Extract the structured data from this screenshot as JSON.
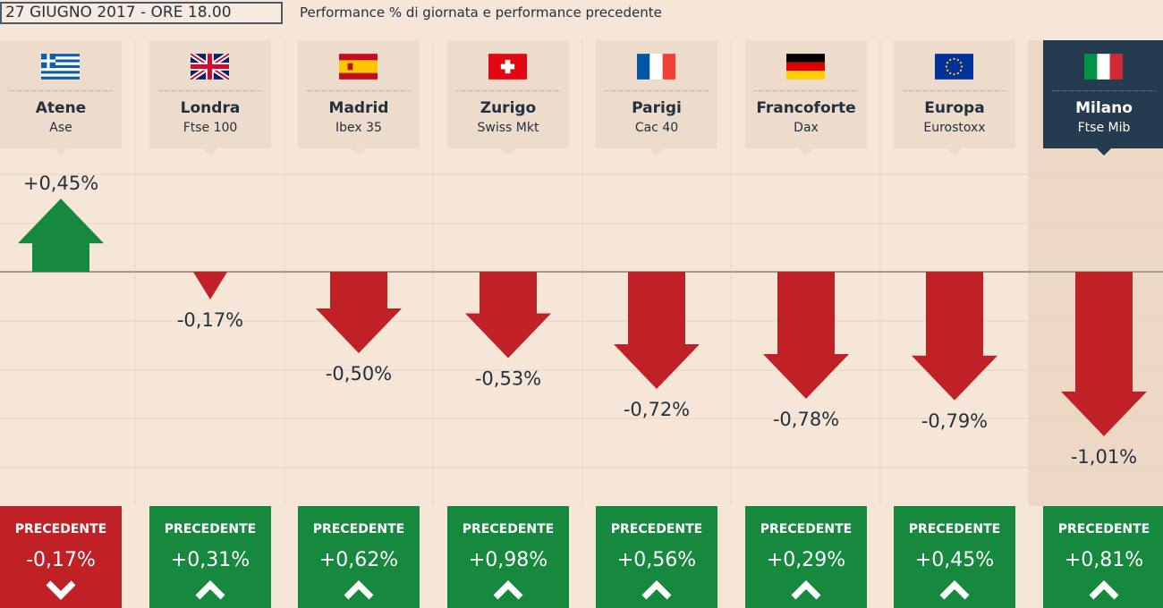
{
  "header": {
    "date": "27 GIUGNO 2017 - ORE 18.00",
    "subtitle": "Performance % di giornata e performance precedente"
  },
  "chart_data": {
    "type": "bar",
    "title": "Performance % di giornata e performance precedente",
    "categories": [
      "Atene",
      "Londra",
      "Madrid",
      "Zurigo",
      "Parigi",
      "Francoforte",
      "Europa",
      "Milano"
    ],
    "series": [
      {
        "values": [
          0.45,
          -0.17,
          -0.5,
          -0.53,
          -0.72,
          -0.78,
          -0.79,
          -1.01
        ]
      }
    ],
    "ylim": [
      -1.1,
      0.45
    ],
    "grid": true
  },
  "markets": [
    {
      "city": "Atene",
      "index": "Ase",
      "flag": "greece-flag",
      "value": 0.45,
      "value_label": "+0,45%",
      "prev_label": "PRECEDENTE",
      "prev_value": "-0,17%",
      "prev_direction": "down"
    },
    {
      "city": "Londra",
      "index": "Ftse 100",
      "flag": "uk-flag",
      "value": -0.17,
      "value_label": "-0,17%",
      "prev_label": "PRECEDENTE",
      "prev_value": "+0,31%",
      "prev_direction": "up"
    },
    {
      "city": "Madrid",
      "index": "Ibex 35",
      "flag": "spain-flag",
      "value": -0.5,
      "value_label": "-0,50%",
      "prev_label": "PRECEDENTE",
      "prev_value": "+0,62%",
      "prev_direction": "up"
    },
    {
      "city": "Zurigo",
      "index": "Swiss Mkt",
      "flag": "switzerland-flag",
      "value": -0.53,
      "value_label": "-0,53%",
      "prev_label": "PRECEDENTE",
      "prev_value": "+0,98%",
      "prev_direction": "up"
    },
    {
      "city": "Parigi",
      "index": "Cac 40",
      "flag": "france-flag",
      "value": -0.72,
      "value_label": "-0,72%",
      "prev_label": "PRECEDENTE",
      "prev_value": "+0,56%",
      "prev_direction": "up"
    },
    {
      "city": "Francoforte",
      "index": "Dax",
      "flag": "germany-flag",
      "value": -0.78,
      "value_label": "-0,78%",
      "prev_label": "PRECEDENTE",
      "prev_value": "+0,29%",
      "prev_direction": "up"
    },
    {
      "city": "Europa",
      "index": "Eurostoxx",
      "flag": "eu-flag",
      "value": -0.79,
      "value_label": "-0,79%",
      "prev_label": "PRECEDENTE",
      "prev_value": "+0,45%",
      "prev_direction": "up"
    },
    {
      "city": "Milano",
      "index": "Ftse Mib",
      "flag": "italy-flag",
      "value": -1.01,
      "value_label": "-1,01%",
      "prev_label": "PRECEDENTE",
      "prev_value": "+0,81%",
      "prev_direction": "up",
      "highlight": true
    }
  ],
  "colors": {
    "background": "#f5e6d7",
    "header": "#eddccb",
    "highlight_header": "#243b50",
    "highlight_column": "#ecd8c5",
    "up": "#17893f",
    "down": "#c02127",
    "text": "#23313f"
  }
}
